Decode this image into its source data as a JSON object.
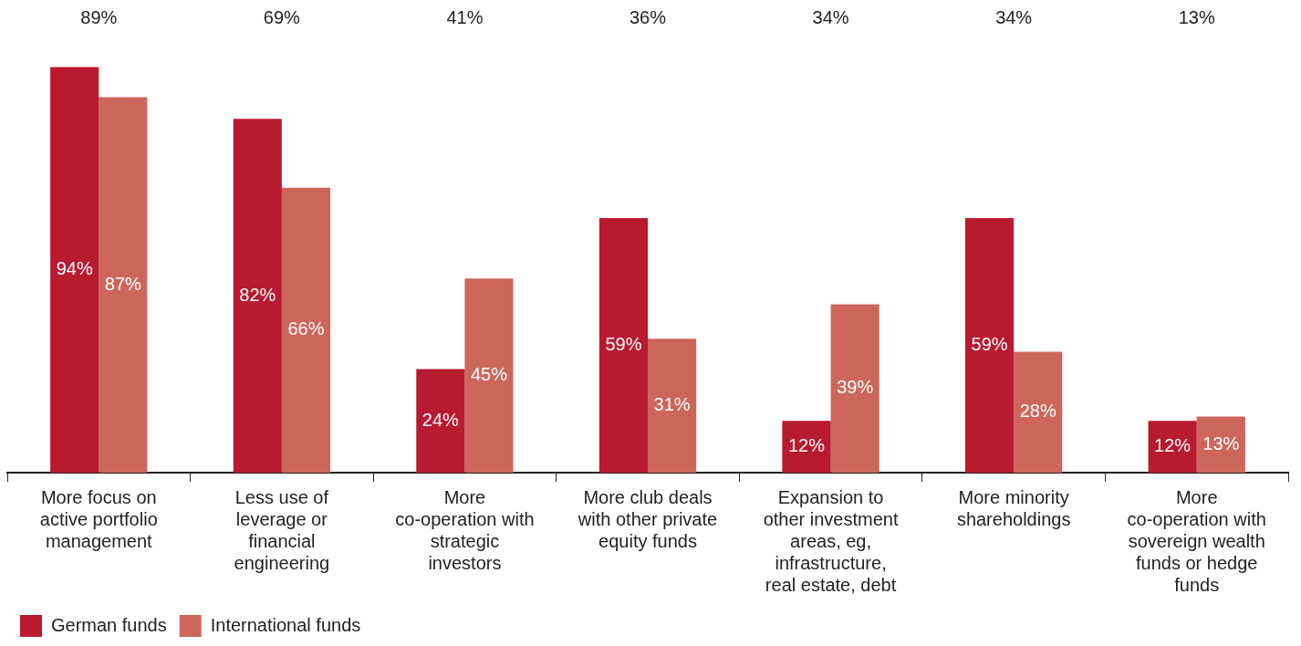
{
  "chart_data": {
    "type": "bar",
    "categories": [
      "More focus on active portfolio management",
      "Less use of leverage or financial engineering",
      "More co-operation with strategic investors",
      "More club deals with other private equity funds",
      "Expansion to other investment areas, eg, infrastructure, real estate, debt",
      "More minority shareholdings",
      "More co-operation with sovereign wealth funds or hedge funds"
    ],
    "series": [
      {
        "name": "German funds",
        "color": "#b81a30",
        "values": [
          94,
          82,
          24,
          59,
          12,
          59,
          12
        ],
        "value_labels": [
          "94%",
          "82%",
          "24%",
          "59%",
          "12%",
          "59%",
          "12%"
        ]
      },
      {
        "name": "International funds",
        "color": "#cd665a",
        "values": [
          87,
          66,
          45,
          31,
          39,
          28,
          13
        ],
        "value_labels": [
          "87%",
          "66%",
          "45%",
          "31%",
          "39%",
          "28%",
          "13%"
        ]
      }
    ],
    "annotations": [
      "89%",
      "69%",
      "41%",
      "36%",
      "34%",
      "34%",
      "13%"
    ],
    "legend": "bottom",
    "grid": false
  }
}
